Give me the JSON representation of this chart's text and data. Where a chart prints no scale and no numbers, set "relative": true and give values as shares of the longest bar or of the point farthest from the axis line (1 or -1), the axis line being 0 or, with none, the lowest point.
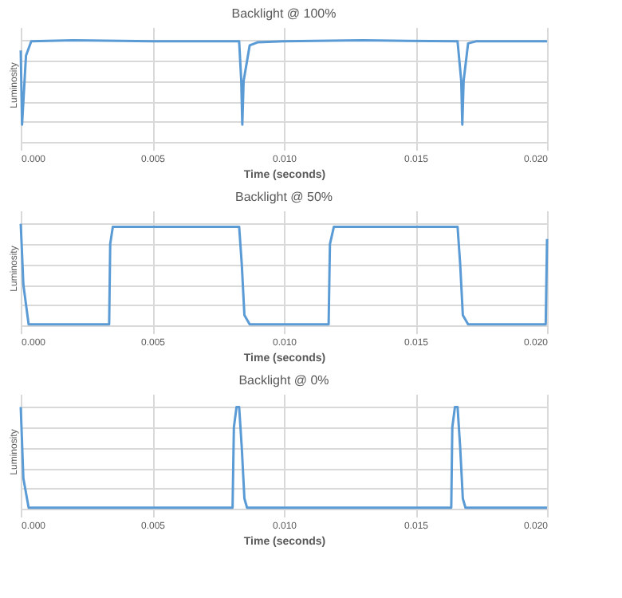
{
  "chart_data": [
    {
      "type": "line",
      "title": "Backlight @ 100%",
      "xlabel": "Time (seconds)",
      "ylabel": "Luminosity",
      "relative": true,
      "grid": true,
      "tick_labels": "x",
      "xlim": [
        0,
        0.02
      ],
      "xticks": [
        {
          "value": 0,
          "label": "0.000"
        },
        {
          "value": 0.005,
          "label": "0.005"
        },
        {
          "value": 0.01,
          "label": "0.010"
        },
        {
          "value": 0.015,
          "label": "0.015"
        },
        {
          "value": 0.02,
          "label": "0.020"
        }
      ],
      "series": [
        {
          "color": "#5b9bd5",
          "x": [
            0,
            5e-05,
            0.0002,
            0.0004,
            0.002,
            0.005,
            0.008,
            0.0083,
            0.00838,
            0.00842,
            0.00847,
            0.0087,
            0.009,
            0.01,
            0.013,
            0.0166,
            0.01674,
            0.01678,
            0.01683,
            0.017,
            0.0173,
            0.02
          ],
          "values": [
            0.9,
            0.17,
            0.85,
            0.99,
            1.0,
            0.99,
            0.99,
            0.99,
            0.6,
            0.17,
            0.6,
            0.95,
            0.98,
            0.99,
            1.0,
            0.99,
            0.6,
            0.17,
            0.6,
            0.97,
            0.99,
            0.99
          ]
        }
      ]
    },
    {
      "type": "line",
      "title": "Backlight @ 50%",
      "xlabel": "Time (seconds)",
      "ylabel": "Luminosity",
      "relative": true,
      "grid": true,
      "tick_labels": "x",
      "xlim": [
        0,
        0.02
      ],
      "xticks": [
        {
          "value": 0,
          "label": "0.000"
        },
        {
          "value": 0.005,
          "label": "0.005"
        },
        {
          "value": 0.01,
          "label": "0.010"
        },
        {
          "value": 0.015,
          "label": "0.015"
        },
        {
          "value": 0.02,
          "label": "0.020"
        }
      ],
      "series": [
        {
          "color": "#5b9bd5",
          "x": [
            0,
            0.0001,
            0.0003,
            0.00336,
            0.0034,
            0.0035,
            0.0083,
            0.0084,
            0.0085,
            0.0087,
            0.0117,
            0.01175,
            0.0119,
            0.0166,
            0.0167,
            0.0168,
            0.017,
            0.01995,
            0.02
          ],
          "values": [
            1.0,
            0.4,
            0.01,
            0.01,
            0.8,
            0.97,
            0.97,
            0.6,
            0.1,
            0.01,
            0.01,
            0.8,
            0.97,
            0.97,
            0.6,
            0.1,
            0.01,
            0.01,
            0.85
          ]
        }
      ]
    },
    {
      "type": "line",
      "title": "Backlight @ 0%",
      "xlabel": "Time (seconds)",
      "ylabel": "Luminosity",
      "relative": true,
      "grid": true,
      "tick_labels": "x",
      "xlim": [
        0,
        0.02
      ],
      "xticks": [
        {
          "value": 0,
          "label": "0.000"
        },
        {
          "value": 0.005,
          "label": "0.005"
        },
        {
          "value": 0.01,
          "label": "0.010"
        },
        {
          "value": 0.015,
          "label": "0.015"
        },
        {
          "value": 0.02,
          "label": "0.020"
        }
      ],
      "series": [
        {
          "color": "#5b9bd5",
          "x": [
            0,
            0.0001,
            0.0003,
            0.00805,
            0.0081,
            0.0082,
            0.0083,
            0.0084,
            0.0085,
            0.0086,
            0.01636,
            0.0164,
            0.0165,
            0.0166,
            0.0167,
            0.0168,
            0.0169,
            0.02
          ],
          "values": [
            1.0,
            0.3,
            0.01,
            0.01,
            0.8,
            1.0,
            1.0,
            0.6,
            0.1,
            0.01,
            0.01,
            0.8,
            1.0,
            1.0,
            0.6,
            0.1,
            0.01,
            0.01
          ]
        }
      ]
    }
  ]
}
